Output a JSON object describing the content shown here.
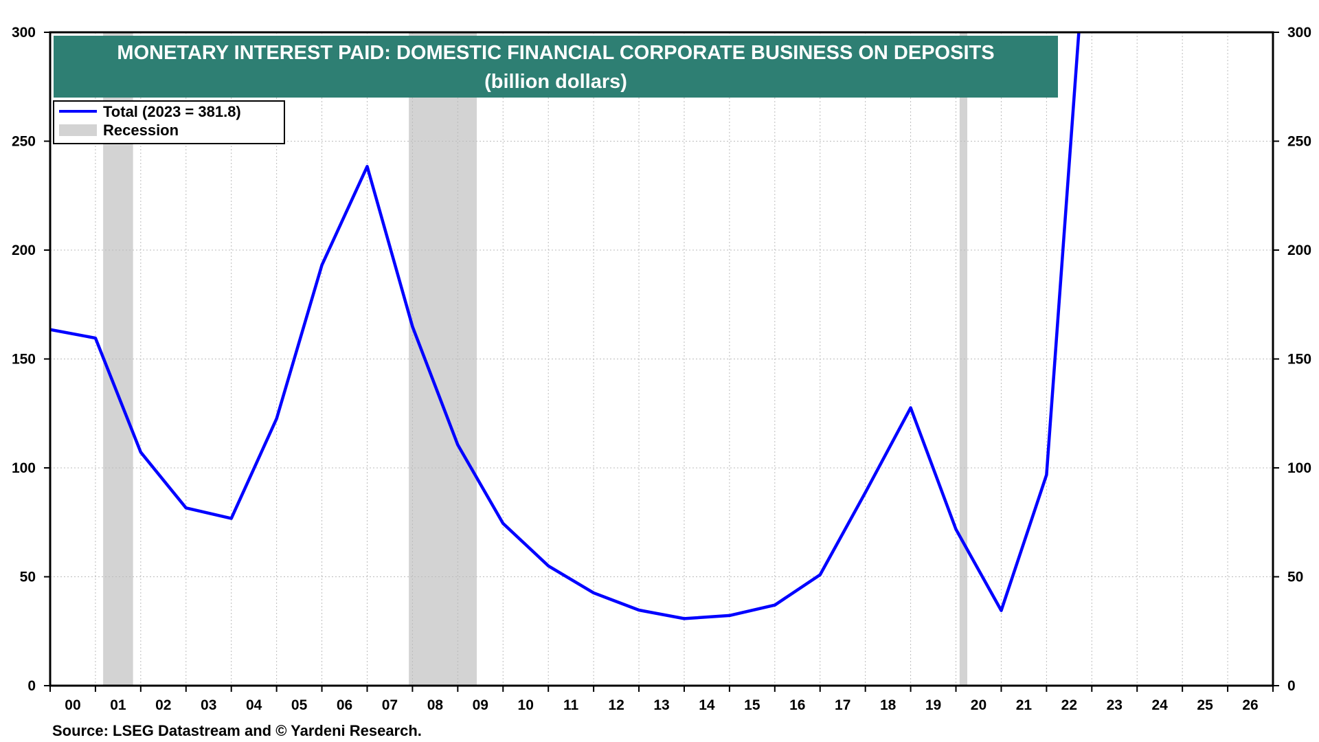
{
  "chart_data": {
    "type": "line",
    "title": "MONETARY INTEREST PAID: DOMESTIC FINANCIAL CORPORATE BUSINESS ON DEPOSITS",
    "subtitle": "(billion dollars)",
    "x_tick_labels": [
      "00",
      "01",
      "02",
      "03",
      "04",
      "05",
      "06",
      "07",
      "08",
      "09",
      "10",
      "11",
      "12",
      "13",
      "14",
      "15",
      "16",
      "17",
      "18",
      "19",
      "20",
      "21",
      "22",
      "23",
      "24",
      "25",
      "26"
    ],
    "x_range": [
      2000,
      2027
    ],
    "ylim": [
      0,
      300
    ],
    "y_ticks": [
      0,
      50,
      100,
      150,
      200,
      250,
      300
    ],
    "series": [
      {
        "name": "Total (2023 = 381.8)",
        "color": "#0000ff",
        "x": [
          2000,
          2001,
          2002,
          2003,
          2004,
          2005,
          2006,
          2007,
          2008,
          2009,
          2010,
          2011,
          2012,
          2013,
          2014,
          2015,
          2016,
          2017,
          2018,
          2019,
          2020,
          2021,
          2022,
          2023
        ],
        "values": [
          163.5,
          159.6,
          107.2,
          81.6,
          76.8,
          122.6,
          193.1,
          238.4,
          164.9,
          110.6,
          74.5,
          55.0,
          42.6,
          34.7,
          30.8,
          32.2,
          37.0,
          50.9,
          88.7,
          127.6,
          71.8,
          34.5,
          96.8,
          381.8
        ]
      }
    ],
    "recessions": [
      {
        "start": 2001.17,
        "end": 2001.83
      },
      {
        "start": 2007.92,
        "end": 2009.42
      },
      {
        "start": 2020.08,
        "end": 2020.25
      }
    ],
    "recession_label": "Recession",
    "colors": {
      "title_bg": "#2e7f73",
      "line": "#0000ff",
      "recession": "#d3d3d3",
      "grid": "#bbbbbb"
    },
    "grid": true,
    "legend_position": "top-left",
    "source": "Source: LSEG Datastream and © Yardeni Research."
  }
}
